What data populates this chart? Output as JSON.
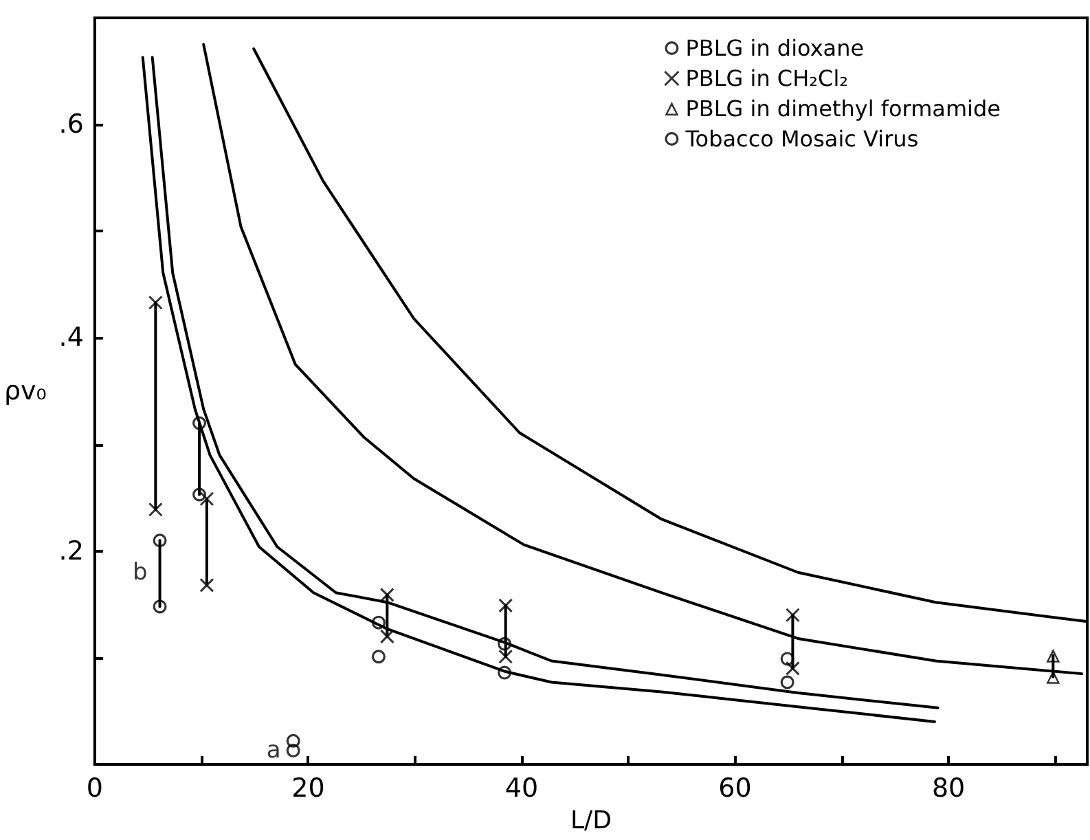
{
  "chart_data": {
    "type": "scatter",
    "xlabel": "L/D",
    "ylabel": "ρv₀",
    "xlim": [
      0,
      93
    ],
    "ylim": [
      0,
      0.7
    ],
    "xticks": [
      0,
      {
        "value": 10,
        "label": null
      },
      20,
      {
        "value": 30,
        "label": null
      },
      40,
      {
        "value": 50,
        "label": null
      },
      60,
      {
        "value": 70,
        "label": null
      },
      80,
      {
        "value": 90,
        "label": null
      }
    ],
    "yticks": [
      {
        "value": 0.1,
        "label": null
      },
      {
        "value": 0.2,
        "label": ".2"
      },
      {
        "value": 0.3,
        "label": null
      },
      {
        "value": 0.4,
        "label": ".4"
      },
      {
        "value": 0.5,
        "label": null
      },
      {
        "value": 0.6,
        "label": ".6"
      }
    ],
    "grid": false,
    "legend": "top right",
    "annotations": [
      {
        "text": "a",
        "x": 18.6,
        "y": 0.013
      },
      {
        "text": "b",
        "x": 6.1,
        "y": 0.18
      }
    ],
    "series": [
      {
        "name": "PBLG in dioxane",
        "marker": "circle",
        "color": "#000000",
        "x": [
          9.8,
          9.8,
          26.6,
          26.6,
          38.4,
          38.4,
          64.9,
          64.9
        ],
        "values": [
          0.32,
          0.253,
          0.133,
          0.101,
          0.113,
          0.086,
          0.099,
          0.077
        ]
      },
      {
        "name": "PBLG in CH₂Cl₂",
        "marker": "cross",
        "color": "#000000",
        "x": [
          5.7,
          5.7,
          10.5,
          10.5,
          27.4,
          27.4,
          38.5,
          38.5,
          65.4,
          65.4
        ],
        "values": [
          0.433,
          0.239,
          0.249,
          0.168,
          0.159,
          0.12,
          0.149,
          0.101,
          0.14,
          0.09
        ]
      },
      {
        "name": "PBLG in dimethyl formamide",
        "marker": "triangle",
        "color": "#000000",
        "x": [
          89.8,
          89.8
        ],
        "values": [
          0.102,
          0.082
        ]
      },
      {
        "name": "Tobacco Mosaic Virus",
        "marker": "circle",
        "color": "#000000",
        "x": [
          6.1,
          6.1,
          18.6,
          18.6
        ],
        "values": [
          0.21,
          0.148,
          0.022,
          0.013
        ]
      },
      {
        "type": "line",
        "marker": "none",
        "color": "#000000",
        "x": [
          5.7,
          5.7
        ],
        "values": [
          0.433,
          0.239
        ]
      },
      {
        "type": "line",
        "marker": "none",
        "color": "#000000",
        "x": [
          9.8,
          9.8
        ],
        "values": [
          0.32,
          0.253
        ]
      },
      {
        "type": "line",
        "marker": "none",
        "color": "#000000",
        "x": [
          10.5,
          10.5
        ],
        "values": [
          0.249,
          0.168
        ]
      },
      {
        "type": "line",
        "marker": "none",
        "color": "#000000",
        "x": [
          6.1,
          6.1
        ],
        "values": [
          0.21,
          0.148
        ]
      },
      {
        "type": "line",
        "marker": "none",
        "color": "#000000",
        "x": [
          27.4,
          27.4
        ],
        "values": [
          0.159,
          0.12
        ]
      },
      {
        "type": "line",
        "marker": "none",
        "color": "#000000",
        "x": [
          38.5,
          38.5
        ],
        "values": [
          0.149,
          0.101
        ]
      },
      {
        "type": "line",
        "marker": "none",
        "color": "#000000",
        "x": [
          65.4,
          65.4
        ],
        "values": [
          0.14,
          0.09
        ]
      },
      {
        "type": "line",
        "marker": "none",
        "color": "#000000",
        "x": [
          89.8,
          89.8
        ],
        "values": [
          0.102,
          0.082
        ]
      },
      {
        "type": "line",
        "marker": "none",
        "color": "#000000",
        "x": [
          4.5,
          6.4,
          9.4,
          10.8,
          15.4,
          20.5,
          27.4,
          38.5,
          42.8,
          53.1,
          65.9,
          78.7
        ],
        "values": [
          0.663,
          0.461,
          0.333,
          0.29,
          0.204,
          0.161,
          0.127,
          0.087,
          0.077,
          0.068,
          0.054,
          0.04
        ]
      },
      {
        "type": "line",
        "marker": "none",
        "color": "#000000",
        "x": [
          5.4,
          7.3,
          10.2,
          11.7,
          17.1,
          22.6,
          27.4,
          38.5,
          42.8,
          53.1,
          65.9,
          79
        ],
        "values": [
          0.663,
          0.461,
          0.333,
          0.29,
          0.204,
          0.161,
          0.152,
          0.114,
          0.097,
          0.084,
          0.067,
          0.053
        ]
      },
      {
        "type": "line",
        "marker": "none",
        "color": "#000000",
        "x": [
          10.2,
          13.7,
          18.8,
          25.2,
          29.9,
          40.2,
          53.1,
          65.9,
          78.8,
          92.5
        ],
        "values": [
          0.675,
          0.504,
          0.375,
          0.307,
          0.268,
          0.206,
          0.161,
          0.118,
          0.097,
          0.085
        ]
      },
      {
        "type": "line",
        "marker": "none",
        "color": "#000000",
        "x": [
          14.9,
          21.4,
          29.9,
          39.8,
          53.1,
          65.9,
          78.8,
          92.9
        ],
        "values": [
          0.671,
          0.547,
          0.418,
          0.311,
          0.23,
          0.18,
          0.152,
          0.134
        ]
      }
    ]
  }
}
